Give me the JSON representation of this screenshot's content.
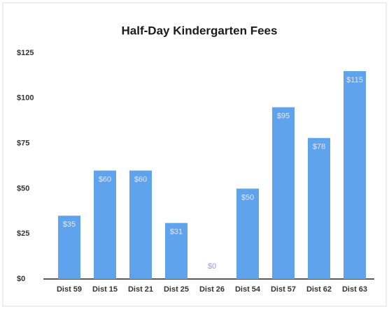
{
  "chart_data": {
    "type": "bar",
    "title": "Half-Day Kindergarten Fees",
    "categories": [
      "Dist 59",
      "Dist 15",
      "Dist 21",
      "Dist 25",
      "Dist 26",
      "Dist 54",
      "Dist 57",
      "Dist 62",
      "Dist 63"
    ],
    "values": [
      35,
      60,
      60,
      31,
      0,
      50,
      95,
      78,
      115
    ],
    "value_labels": [
      "$35",
      "$60",
      "$60",
      "$31",
      "$0",
      "$50",
      "$95",
      "$78",
      "$115"
    ],
    "color": "#5ea3ec",
    "ylim": [
      0,
      125
    ],
    "yticks": [
      {
        "value": 0,
        "label": "$0"
      },
      {
        "value": 25,
        "label": "$25"
      },
      {
        "value": 50,
        "label": "$50"
      },
      {
        "value": 75,
        "label": "$75"
      },
      {
        "value": 100,
        "label": "$100"
      },
      {
        "value": 125,
        "label": "$125"
      }
    ],
    "grid": false
  }
}
